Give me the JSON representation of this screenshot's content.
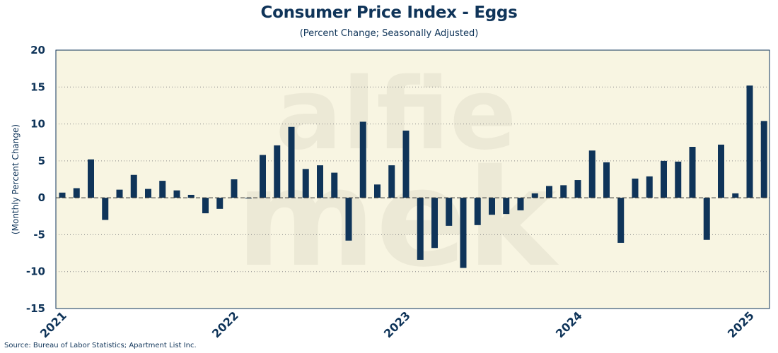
{
  "colors": {
    "bar": "#0f3459",
    "plot_bg": "#f8f5e2",
    "grid": "#8a8a8a",
    "text": "#0f3459",
    "watermark": "#d8d3c0"
  },
  "watermark": {
    "line1": "alfie",
    "line2": "mek"
  },
  "chart_data": {
    "type": "bar",
    "title": "Consumer Price Index - Eggs",
    "subtitle": "(Percent Change; Seasonally Adjusted)",
    "ylabel": "(Monthly Percent Change)",
    "xlabel": "",
    "source": "Source: Bureau of Labor Statistics; Apartment List Inc.",
    "ylim": [
      -15,
      20
    ],
    "yticks": [
      -15,
      -10,
      -5,
      0,
      5,
      10,
      15,
      20
    ],
    "x_tick_labels": [
      "2021",
      "2022",
      "2023",
      "2024",
      "2025"
    ],
    "grid": "horizontal dotted",
    "legend": "none",
    "categories": [
      "2021-01",
      "2021-02",
      "2021-03",
      "2021-04",
      "2021-05",
      "2021-06",
      "2021-07",
      "2021-08",
      "2021-09",
      "2021-10",
      "2021-11",
      "2021-12",
      "2022-01",
      "2022-02",
      "2022-03",
      "2022-04",
      "2022-05",
      "2022-06",
      "2022-07",
      "2022-08",
      "2022-09",
      "2022-10",
      "2022-11",
      "2022-12",
      "2023-01",
      "2023-02",
      "2023-03",
      "2023-04",
      "2023-05",
      "2023-06",
      "2023-07",
      "2023-08",
      "2023-09",
      "2023-10",
      "2023-11",
      "2023-12",
      "2024-01",
      "2024-02",
      "2024-03",
      "2024-04",
      "2024-05",
      "2024-06",
      "2024-07",
      "2024-08",
      "2024-09",
      "2024-10",
      "2024-11",
      "2024-12",
      "2025-01",
      "2025-02"
    ],
    "values": [
      0.7,
      1.3,
      5.2,
      -3.0,
      1.1,
      3.1,
      1.2,
      2.3,
      1.0,
      0.4,
      -2.1,
      -1.5,
      2.5,
      -0.1,
      5.8,
      7.1,
      9.6,
      3.9,
      4.4,
      3.4,
      -5.8,
      10.3,
      1.8,
      4.4,
      9.1,
      -8.4,
      -6.8,
      -3.8,
      -9.5,
      -3.7,
      -2.3,
      -2.2,
      -1.7,
      0.6,
      1.6,
      1.7,
      2.4,
      6.4,
      4.8,
      -6.1,
      2.6,
      2.9,
      5.0,
      4.9,
      6.9,
      -5.7,
      7.2,
      0.6,
      15.2,
      10.4
    ]
  }
}
